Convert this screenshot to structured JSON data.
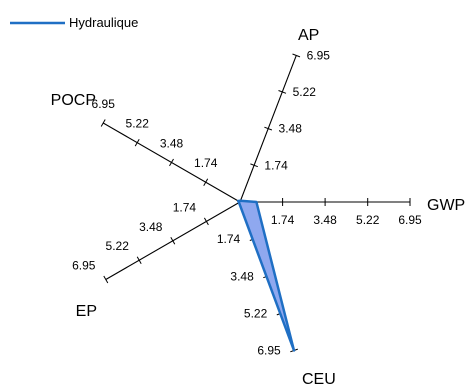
{
  "chart_data": {
    "type": "radar",
    "axes": [
      "GWP",
      "AP",
      "POCP",
      "EP",
      "CEU"
    ],
    "scale": {
      "min": 0,
      "max": 6.95,
      "ticks": [
        1.74,
        3.48,
        5.22,
        6.95
      ]
    },
    "series": [
      {
        "name": "Hydraulique",
        "values": [
          0.67,
          0.06,
          0.09,
          0.05,
          6.95
        ],
        "stroke_color": "#1f6fc4",
        "fill_color": "#8fa8ef"
      }
    ],
    "legend_position": "top-left",
    "grid": false
  }
}
